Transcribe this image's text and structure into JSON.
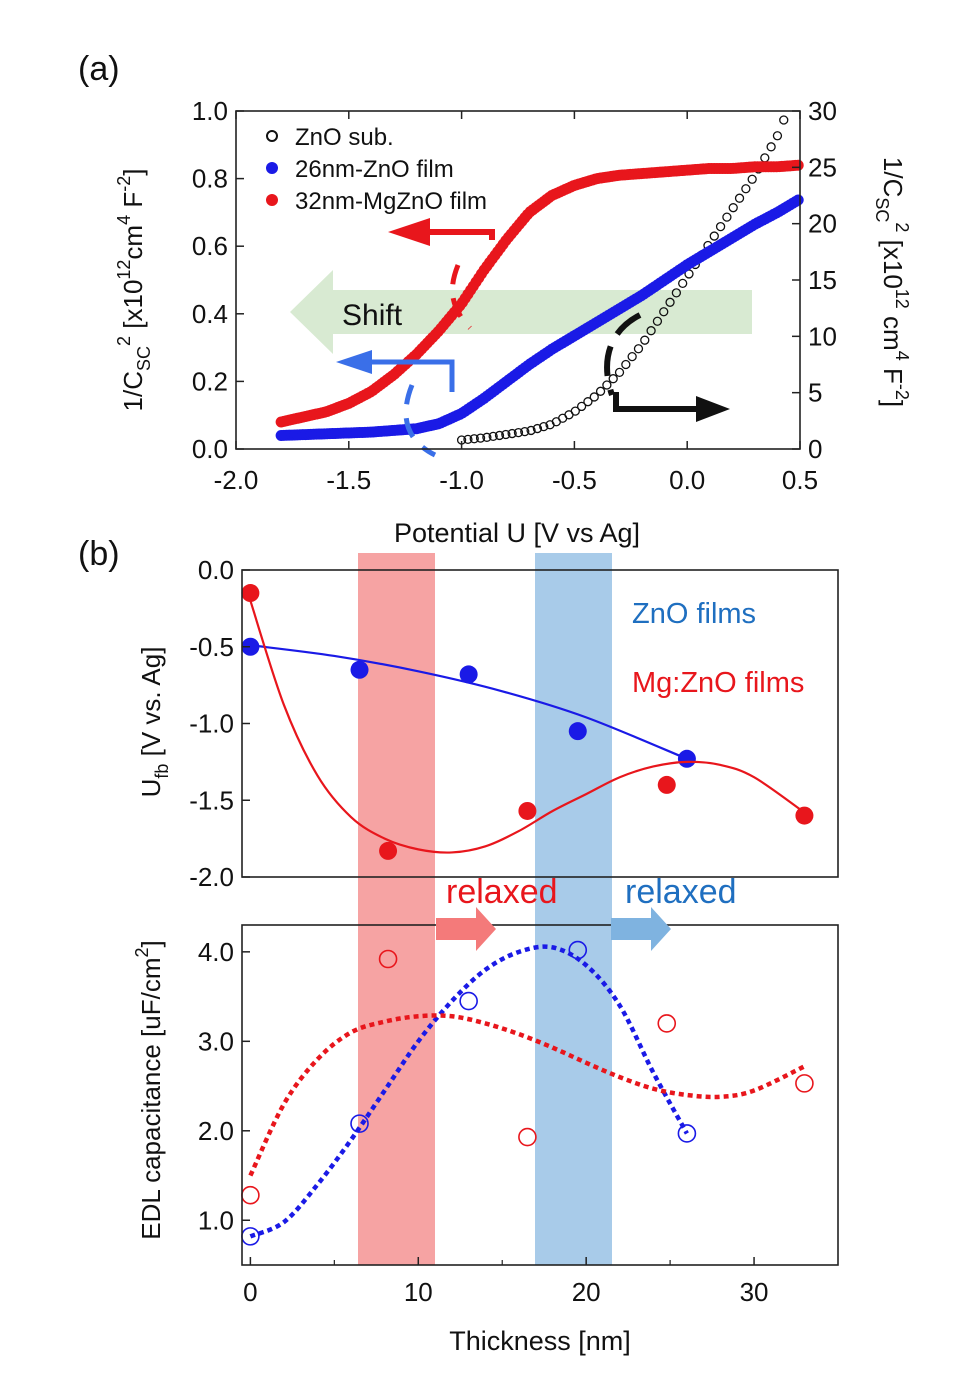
{
  "panel_a": {
    "label": "(a)",
    "xlabel": "Potential U [V vs Ag]",
    "ylabel_left": {
      "base": "1/C",
      "sub": "SC",
      "sup": "2",
      "rest": " [x10",
      "sup2": "12",
      "rest2": "cm",
      "sup3": "4",
      "rest3": " F",
      "sup4": "-2",
      "close": "]"
    },
    "ylabel_right": {
      "base": "1/C",
      "sub": "SC",
      "sup": "2",
      "rest": " [x10",
      "sup2": "12",
      "rest2": " cm",
      "sup3": "4",
      "rest3": " F",
      "sup4": "-2",
      "close": "]"
    },
    "shift_label": "Shift"
  },
  "panel_b": {
    "label": "(b)",
    "xlabel": "Thickness [nm]",
    "top_ylabel": {
      "base": "U",
      "sub": "fb",
      "rest": " [V vs. Ag]"
    },
    "bottom_ylabel": {
      "base": "EDL capacitance [uF/cm",
      "sup": "2",
      "close": "]"
    },
    "relaxed_red": "relaxed",
    "relaxed_blue": "relaxed",
    "legend_zno": "ZnO films",
    "legend_mgzno": "Mg:ZnO films"
  },
  "colors": {
    "red": "#e8161c",
    "blue": "#1a1ae6",
    "black": "#111111",
    "label_blue": "#1f6fc0",
    "red_band": "#f6a3a3",
    "blue_band": "#a8cbe9",
    "shift_arrow": "#d8ead2"
  },
  "chart_data": [
    {
      "type": "scatter",
      "panel": "a",
      "xlim": [
        -2.0,
        0.5
      ],
      "ylim_left": [
        0.0,
        1.0
      ],
      "ylim_right": [
        0,
        30
      ],
      "x_ticks": [
        "-2.0",
        "-1.5",
        "-1.0",
        "-0.5",
        "0.0",
        "0.5"
      ],
      "y_ticks_left": [
        "0.0",
        "0.2",
        "0.4",
        "0.6",
        "0.8",
        "1.0"
      ],
      "y_ticks_right": [
        "0",
        "5",
        "10",
        "15",
        "20",
        "25",
        "30"
      ],
      "legend_position": "top-left",
      "series": [
        {
          "name": "ZnO sub.",
          "axis": "right",
          "marker": "open-circle",
          "x": [
            -1.0,
            -0.9,
            -0.8,
            -0.7,
            -0.6,
            -0.5,
            -0.4,
            -0.3,
            -0.2,
            -0.1,
            0.0,
            0.1,
            0.2,
            0.3,
            0.4,
            0.43
          ],
          "y": [
            0.8,
            1.0,
            1.3,
            1.6,
            2.2,
            3.3,
            4.8,
            6.8,
            9.3,
            12.3,
            15.3,
            18.3,
            21.3,
            24.3,
            27.8,
            29.3
          ]
        },
        {
          "name": "26nm-ZnO film",
          "axis": "left",
          "marker": "filled-circle",
          "x": [
            -1.8,
            -1.6,
            -1.4,
            -1.2,
            -1.1,
            -1.0,
            -0.9,
            -0.8,
            -0.7,
            -0.6,
            -0.5,
            -0.4,
            -0.3,
            -0.2,
            -0.1,
            0.0,
            0.1,
            0.2,
            0.3,
            0.4,
            0.5
          ],
          "y": [
            0.04,
            0.045,
            0.05,
            0.06,
            0.075,
            0.105,
            0.15,
            0.2,
            0.25,
            0.295,
            0.335,
            0.375,
            0.415,
            0.455,
            0.5,
            0.545,
            0.585,
            0.625,
            0.665,
            0.7,
            0.74
          ]
        },
        {
          "name": "32nm-MgZnO film",
          "axis": "left",
          "marker": "filled-circle",
          "x": [
            -1.8,
            -1.6,
            -1.5,
            -1.4,
            -1.3,
            -1.2,
            -1.1,
            -1.0,
            -0.9,
            -0.8,
            -0.7,
            -0.6,
            -0.5,
            -0.4,
            -0.3,
            -0.2,
            -0.1,
            0.0,
            0.1,
            0.2,
            0.3,
            0.4,
            0.5
          ],
          "y": [
            0.08,
            0.11,
            0.135,
            0.17,
            0.22,
            0.28,
            0.35,
            0.43,
            0.53,
            0.62,
            0.7,
            0.75,
            0.78,
            0.8,
            0.81,
            0.815,
            0.82,
            0.825,
            0.83,
            0.83,
            0.835,
            0.835,
            0.84
          ]
        }
      ]
    },
    {
      "type": "scatter",
      "panel": "b-top",
      "xlim": [
        -0.5,
        35
      ],
      "ylim": [
        -2.0,
        0.0
      ],
      "y_ticks": [
        "0.0",
        "-0.5",
        "-1.0",
        "-1.5",
        "-2.0"
      ],
      "series": [
        {
          "name": "ZnO films",
          "marker": "filled-circle",
          "fit": "solid",
          "x": [
            0,
            6.5,
            13,
            19.5,
            26
          ],
          "y": [
            -0.5,
            -0.65,
            -0.68,
            -1.05,
            -1.23
          ],
          "fit_x": [
            0,
            5,
            10,
            15,
            20,
            26
          ],
          "fit_y": [
            -0.49,
            -0.56,
            -0.66,
            -0.79,
            -0.96,
            -1.23
          ]
        },
        {
          "name": "Mg:ZnO films",
          "marker": "filled-circle",
          "fit": "solid",
          "x": [
            0,
            8.2,
            16.5,
            24.8,
            33
          ],
          "y": [
            -0.15,
            -1.83,
            -1.57,
            -1.4,
            -1.6
          ],
          "fit_x": [
            0,
            2,
            4,
            6,
            8,
            10,
            12,
            14,
            16,
            18,
            20,
            22,
            24,
            26,
            28,
            30,
            33
          ],
          "fit_y": [
            -0.2,
            -0.88,
            -1.34,
            -1.61,
            -1.75,
            -1.82,
            -1.84,
            -1.8,
            -1.7,
            -1.57,
            -1.46,
            -1.35,
            -1.28,
            -1.25,
            -1.27,
            -1.35,
            -1.58
          ]
        }
      ]
    },
    {
      "type": "scatter",
      "panel": "b-bottom",
      "xlim": [
        -0.5,
        35
      ],
      "ylim": [
        0.5,
        4.3
      ],
      "x_ticks": [
        "0",
        "10",
        "20",
        "30"
      ],
      "y_ticks": [
        "1.0",
        "2.0",
        "3.0",
        "4.0"
      ],
      "series": [
        {
          "name": "ZnO films",
          "marker": "open-circle",
          "fit": "dotted",
          "x": [
            0,
            6.5,
            13,
            19.5,
            26
          ],
          "y": [
            0.82,
            2.08,
            3.45,
            4.02,
            1.97
          ],
          "fit_x": [
            0,
            2,
            4,
            6,
            8,
            10,
            12,
            14,
            16,
            18,
            20,
            22,
            24,
            26
          ],
          "fit_y": [
            0.82,
            0.98,
            1.4,
            1.9,
            2.45,
            3.0,
            3.45,
            3.8,
            4.0,
            4.05,
            3.85,
            3.4,
            2.65,
            1.97
          ]
        },
        {
          "name": "Mg:ZnO films",
          "marker": "open-circle",
          "fit": "dotted",
          "x": [
            0,
            8.2,
            16.5,
            24.8,
            33
          ],
          "y": [
            1.28,
            3.92,
            1.93,
            3.2,
            2.53
          ],
          "fit_x": [
            0,
            2,
            4,
            6,
            8,
            10,
            12,
            14,
            16,
            18,
            20,
            22,
            24,
            26,
            28,
            30,
            33
          ],
          "fit_y": [
            1.5,
            2.3,
            2.8,
            3.1,
            3.22,
            3.28,
            3.28,
            3.2,
            3.08,
            2.93,
            2.76,
            2.6,
            2.47,
            2.4,
            2.38,
            2.45,
            2.72
          ]
        }
      ]
    }
  ]
}
